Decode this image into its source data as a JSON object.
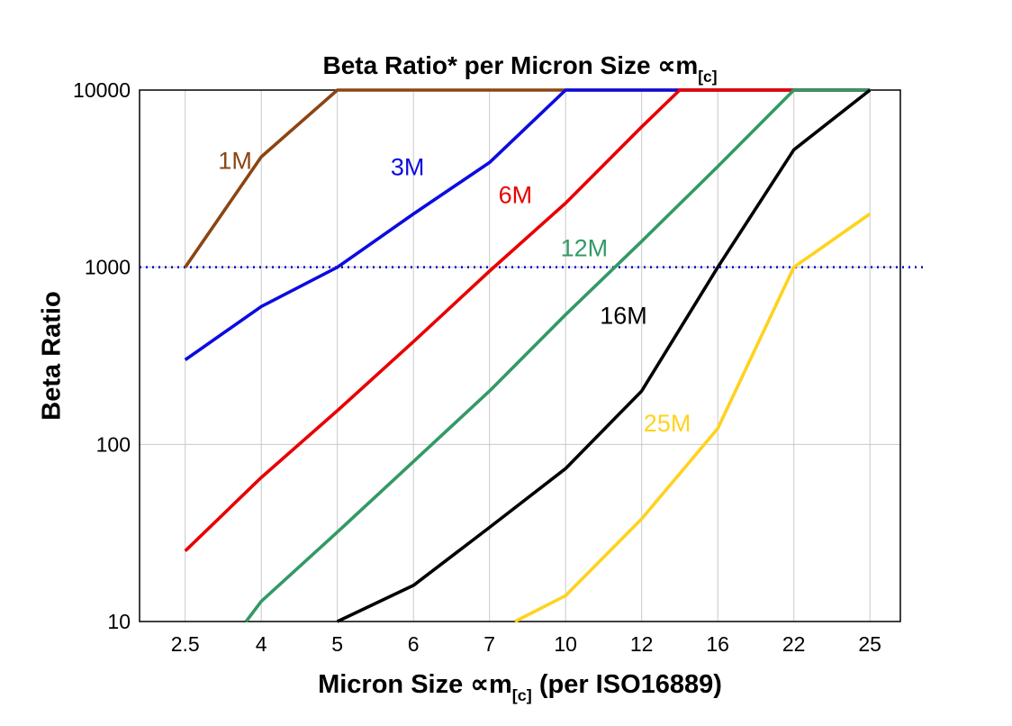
{
  "page": {
    "background": "#FFFFFF"
  },
  "title": {
    "prefix": "Beta Ratio* per Micron Size ",
    "symbol": "∝m",
    "subscript": "[c]"
  },
  "y_axis": {
    "label": "Beta Ratio"
  },
  "x_axis": {
    "label_pre": "Micron Size ",
    "label_symbol": "∝m",
    "label_subscript": "[c]",
    "label_post": " (per ISO16889)"
  },
  "chart_data": {
    "type": "line",
    "x_scale": "categorical",
    "y_scale": "log",
    "categories": [
      2.5,
      4,
      5,
      6,
      7,
      10,
      12,
      16,
      22,
      25
    ],
    "x_tick_labels": [
      "2.5",
      "4",
      "5",
      "6",
      "7",
      "10",
      "12",
      "16",
      "22",
      "25"
    ],
    "y_ticks": [
      10,
      100,
      1000,
      10000
    ],
    "y_tick_labels": [
      "10",
      "100",
      "1000",
      "10000"
    ],
    "ylim": [
      10,
      10000
    ],
    "grid": true,
    "grid_color": "#C9C9C9",
    "reference_line": {
      "y": 1000,
      "style": "dotted",
      "color": "#0000CC"
    },
    "series": [
      {
        "name": "1M",
        "color": "#8B4513",
        "points": [
          [
            2.5,
            1000
          ],
          [
            4,
            4200
          ],
          [
            5,
            10000
          ],
          [
            25,
            10000
          ]
        ],
        "label_at": [
          3.15,
          3600
        ]
      },
      {
        "name": "3M",
        "color": "#0B0BE0",
        "points": [
          [
            2.5,
            300
          ],
          [
            4,
            600
          ],
          [
            5,
            1000
          ],
          [
            6,
            2000
          ],
          [
            7,
            3900
          ],
          [
            10,
            10000
          ],
          [
            25,
            10000
          ]
        ],
        "label_at": [
          5.7,
          3300
        ]
      },
      {
        "name": "6M",
        "color": "#E80000",
        "points": [
          [
            2.5,
            25
          ],
          [
            4,
            65
          ],
          [
            5,
            155
          ],
          [
            6,
            380
          ],
          [
            7,
            950
          ],
          [
            10,
            2300
          ],
          [
            12,
            6200
          ],
          [
            14,
            10000
          ],
          [
            25,
            10000
          ]
        ],
        "label_at": [
          7.35,
          2300
        ]
      },
      {
        "name": "12M",
        "color": "#339966",
        "points": [
          [
            3.7,
            10
          ],
          [
            4,
            13
          ],
          [
            5,
            32
          ],
          [
            6,
            80
          ],
          [
            7,
            200
          ],
          [
            10,
            540
          ],
          [
            12,
            1400
          ],
          [
            16,
            3700
          ],
          [
            22,
            10000
          ],
          [
            25,
            10000
          ]
        ],
        "label_at": [
          9.8,
          1150
        ]
      },
      {
        "name": "16M",
        "color": "#000000",
        "points": [
          [
            5,
            10
          ],
          [
            6,
            16
          ],
          [
            7,
            34
          ],
          [
            10,
            73
          ],
          [
            12,
            200
          ],
          [
            16,
            1000
          ],
          [
            22,
            4600
          ],
          [
            25,
            10000
          ]
        ],
        "label_at": [
          10.9,
          480
        ]
      },
      {
        "name": "25M",
        "color": "#FFD21E",
        "points": [
          [
            8,
            10
          ],
          [
            10,
            14
          ],
          [
            12,
            38
          ],
          [
            16,
            123
          ],
          [
            22,
            1000
          ],
          [
            25,
            2000
          ]
        ],
        "label_at": [
          12.1,
          118
        ]
      }
    ]
  }
}
